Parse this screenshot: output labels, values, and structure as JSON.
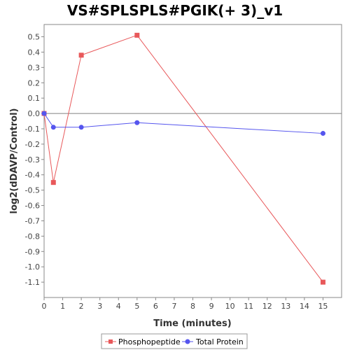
{
  "chart_data": {
    "type": "line",
    "title": "VS#SPLSPLS#PGIK(+ 3)_v1",
    "xlabel": "Time (minutes)",
    "ylabel": "log2(dDAVP/Control)",
    "xlim": [
      0,
      16
    ],
    "ylim": [
      -1.2,
      0.58
    ],
    "x_ticks": [
      0,
      1,
      2,
      3,
      4,
      5,
      6,
      7,
      8,
      9,
      10,
      11,
      12,
      13,
      14,
      15
    ],
    "y_ticks": [
      0.5,
      0.4,
      0.3,
      0.2,
      0.1,
      0.0,
      -0.1,
      -0.2,
      -0.3,
      -0.4,
      -0.5,
      -0.6,
      -0.7,
      -0.8,
      -0.9,
      -1.0,
      -1.1
    ],
    "x_tick_labels": [
      "0",
      "1",
      "2",
      "3",
      "4",
      "5",
      "6",
      "7",
      "8",
      "9",
      "10",
      "11",
      "12",
      "13",
      "14",
      "15"
    ],
    "y_tick_labels": [
      "0.5",
      "0.4",
      "0.3",
      "0.2",
      "0.1",
      "0.0",
      "-0.1",
      "-0.2",
      "-0.3",
      "-0.4",
      "-0.5",
      "-0.6",
      "-0.7",
      "-0.8",
      "-0.9",
      "-1.0",
      "-1.1"
    ],
    "zero_line": true,
    "grid": false,
    "legend_position": "bottom-center",
    "series": [
      {
        "name": "Phosphopeptide",
        "color": "#e8585a",
        "marker": "square",
        "x": [
          0,
          0.5,
          2,
          5,
          15
        ],
        "y": [
          0.0,
          -0.45,
          0.38,
          0.51,
          -1.1
        ]
      },
      {
        "name": "Total Protein",
        "color": "#5555ee",
        "marker": "circle",
        "x": [
          0,
          0.5,
          2,
          5,
          15
        ],
        "y": [
          0.0,
          -0.09,
          -0.09,
          -0.06,
          -0.13
        ]
      }
    ]
  }
}
